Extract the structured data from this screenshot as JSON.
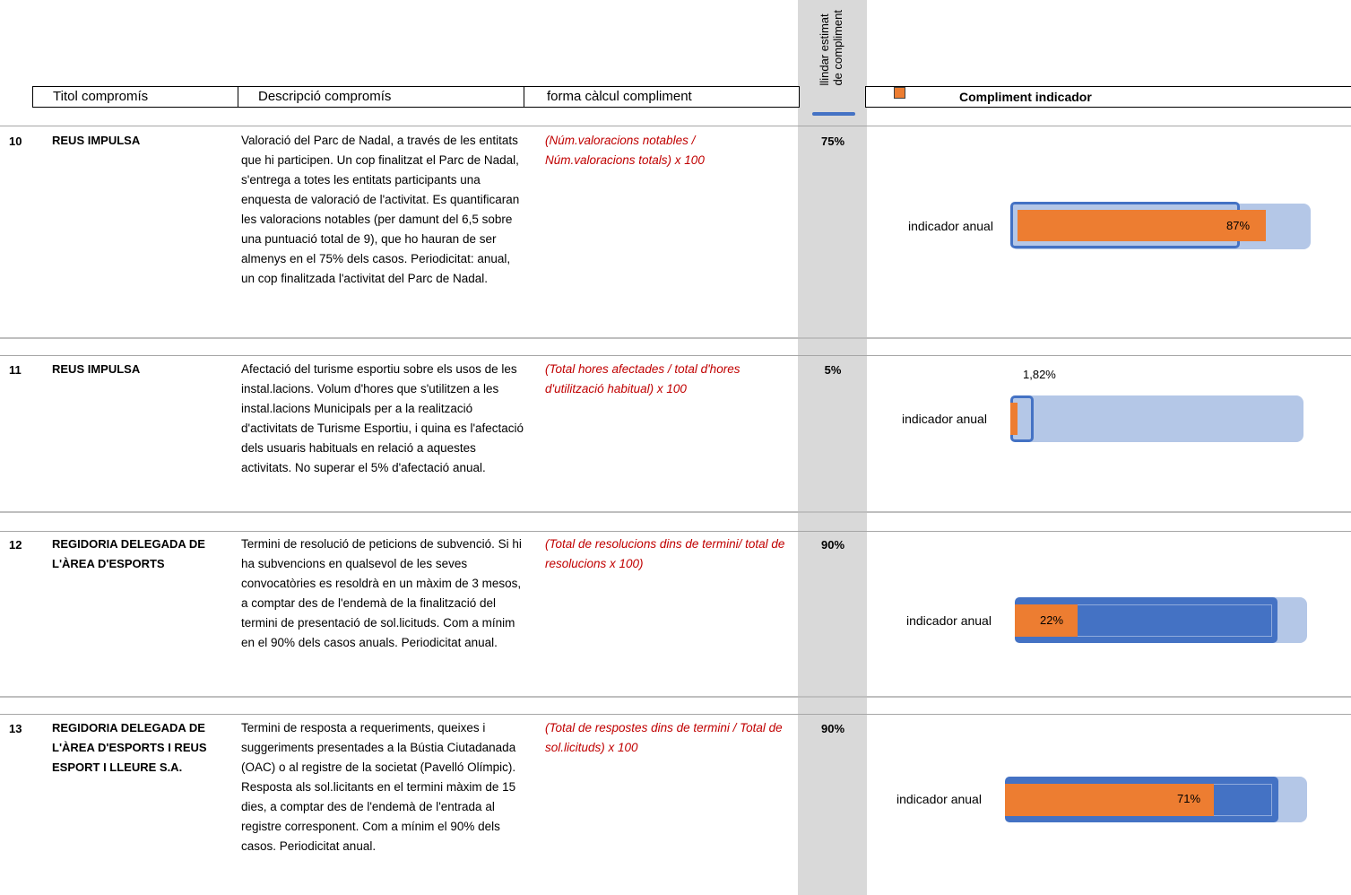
{
  "header": {
    "threshold_label": "llindar estimat\nde compliment",
    "col_title": "Titol compromís",
    "col_description": "Descripció compromís",
    "col_formula": "forma càlcul compliment",
    "legend_title": "Compliment indicador"
  },
  "colors": {
    "actual": "#ed7d31",
    "threshold": "#4472c4",
    "background": "#b4c7e7",
    "formula_text": "#c00000"
  },
  "rows": [
    {
      "number": "10",
      "title": "REUS IMPULSA",
      "description": "Valoració del Parc de Nadal, a través de les entitats que hi participen. Un cop finalitzat el Parc de Nadal, s'entrega a totes les entitats participants una enquesta de valoració de l'activitat. Es quantificaran les valoracions notables (per damunt del 6,5 sobre una puntuació total de 9), que ho hauran de ser almenys en el 75% dels casos. Periodicitat: anual, un cop finalitzada l'activitat del Parc de Nadal.",
      "formula": "(Núm.valoracions notables / Núm.valoracions totals) x 100",
      "threshold": "75%",
      "indicator_label": "indicador anual",
      "value_label": "87%",
      "value": 87,
      "threshold_value": 75
    },
    {
      "number": "11",
      "title": "REUS IMPULSA",
      "description": "Afectació del turisme esportiu sobre els usos de les instal.lacions. Volum d'hores que s'utilitzen a les instal.lacions Municipals per a la realització d'activitats de Turisme Esportiu, i quina es l'afectació dels usuaris habituals en relació a aquestes activitats. No superar el 5% d'afectació anual.",
      "formula": "(Total hores afectades / total d'hores d'utilització habitual) x 100",
      "threshold": "5%",
      "indicator_label": "indicador anual",
      "value_label": "1,82%",
      "value": 1.82,
      "threshold_value": 5
    },
    {
      "number": "12",
      "title": "REGIDORIA DELEGADA DE L'ÀREA D'ESPORTS",
      "description": "Termini de resolució de peticions de subvenció. Si hi ha subvencions en qualsevol de les seves convocatòries es resoldrà en un màxim de 3 mesos, a comptar des de l'endemà de la finalització del termini de presentació de sol.licituds. Com a mínim en el 90% dels casos anuals. Periodicitat anual.",
      "formula": "(Total de resolucions dins de termini/ total de resolucions x 100)",
      "threshold": "90%",
      "indicator_label": "indicador anual",
      "value_label": "22%",
      "value": 22,
      "threshold_value": 90
    },
    {
      "number": "13",
      "title": "REGIDORIA DELEGADA DE L'ÀREA D'ESPORTS I REUS ESPORT I LLEURE S.A.",
      "description": "Termini de resposta a requeriments, queixes i suggeriments presentades a la Bústia Ciutadanada (OAC) o al registre de la societat (Pavelló Olímpic). Resposta als sol.licitants en el termini màxim de 15 dies, a comptar des de l'endemà de l'entrada al registre corresponent. Com a mínim el 90% dels casos. Periodicitat anual.",
      "formula": "(Total de respostes dins de termini / Total de sol.licituds) x 100",
      "threshold": "90%",
      "indicator_label": "indicador anual",
      "value_label": "71%",
      "value": 71,
      "threshold_value": 90
    }
  ]
}
